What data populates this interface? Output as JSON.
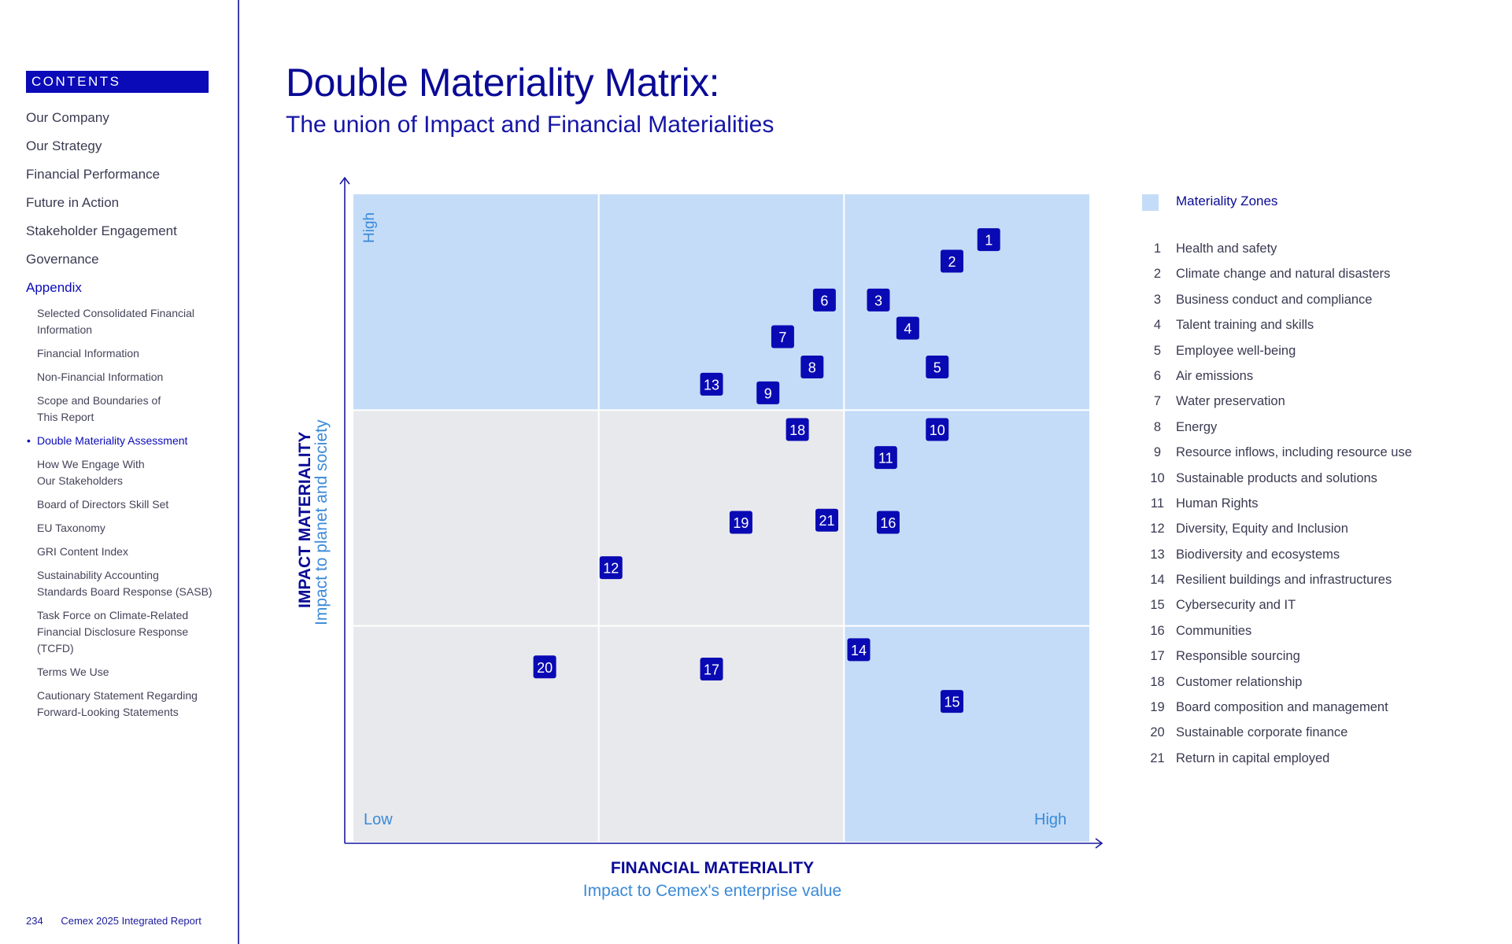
{
  "sidebar": {
    "contents_label": "CONTENTS",
    "main_items": [
      {
        "label": "Our Company"
      },
      {
        "label": "Our Strategy"
      },
      {
        "label": "Financial Performance"
      },
      {
        "label": "Future in Action"
      },
      {
        "label": "Stakeholder Engagement"
      },
      {
        "label": "Governance"
      },
      {
        "label": "Appendix"
      }
    ],
    "active_main": "Appendix",
    "sub_items": [
      {
        "label": "Selected Consolidated Financial\nInformation"
      },
      {
        "label": "Financial Information"
      },
      {
        "label": "Non-Financial Information"
      },
      {
        "label": "Scope and Boundaries of\nThis Report"
      },
      {
        "label": "Double Materiality Assessment"
      },
      {
        "label": "How We Engage With\nOur Stakeholders"
      },
      {
        "label": "Board of Directors Skill Set"
      },
      {
        "label": "EU Taxonomy"
      },
      {
        "label": "GRI Content Index"
      },
      {
        "label": "Sustainability Accounting\nStandards Board Response (SASB)"
      },
      {
        "label": "Task Force on Climate-Related\nFinancial Disclosure Response\n(TCFD)"
      },
      {
        "label": "Terms We Use"
      },
      {
        "label": "Cautionary Statement Regarding\nForward-Looking Statements"
      }
    ],
    "current_sub": "Double Materiality Assessment"
  },
  "footer": {
    "page_number": "234",
    "report_name": "Cemex 2025 Integrated Report"
  },
  "page": {
    "title": "Double Materiality Matrix:",
    "subtitle": "The union of Impact and Financial Materialities"
  },
  "colors": {
    "brand_blue": "#0a0ab4",
    "zone_high": "#c4dcf7",
    "zone_low": "#e8e9ec",
    "axis_accent": "#3b8ad8"
  },
  "chart_data": {
    "type": "scatter",
    "title": "Double Materiality Matrix:",
    "subtitle": "The union of Impact and Financial Materialities",
    "xlabel": "FINANCIAL MATERIALITY",
    "xlabel_sub": "Impact to Cemex's enterprise value",
    "ylabel": "IMPACT MATERIALITY",
    "ylabel_sub": "Impact to planet and society",
    "x_low_label": "Low",
    "x_high_label": "High",
    "y_high_label": "High",
    "xlim": [
      0,
      3
    ],
    "ylim": [
      0,
      3
    ],
    "grid": "3x3",
    "materiality_zones": [
      {
        "col": 0,
        "row": 2
      },
      {
        "col": 1,
        "row": 2
      },
      {
        "col": 2,
        "row": 2
      },
      {
        "col": 2,
        "row": 1
      },
      {
        "col": 2,
        "row": 0
      }
    ],
    "legend_title": "Materiality Zones",
    "points": [
      {
        "id": 1,
        "x": 2.59,
        "y": 2.79
      },
      {
        "id": 2,
        "x": 2.44,
        "y": 2.69
      },
      {
        "id": 3,
        "x": 2.14,
        "y": 2.51
      },
      {
        "id": 4,
        "x": 2.26,
        "y": 2.38
      },
      {
        "id": 5,
        "x": 2.38,
        "y": 2.2
      },
      {
        "id": 6,
        "x": 1.92,
        "y": 2.51
      },
      {
        "id": 7,
        "x": 1.75,
        "y": 2.34
      },
      {
        "id": 8,
        "x": 1.87,
        "y": 2.2
      },
      {
        "id": 9,
        "x": 1.69,
        "y": 2.08
      },
      {
        "id": 10,
        "x": 2.38,
        "y": 1.91
      },
      {
        "id": 11,
        "x": 2.17,
        "y": 1.78
      },
      {
        "id": 12,
        "x": 1.05,
        "y": 1.27
      },
      {
        "id": 13,
        "x": 1.46,
        "y": 2.12
      },
      {
        "id": 14,
        "x": 2.06,
        "y": 0.89
      },
      {
        "id": 15,
        "x": 2.44,
        "y": 0.65
      },
      {
        "id": 16,
        "x": 2.18,
        "y": 1.48
      },
      {
        "id": 17,
        "x": 1.46,
        "y": 0.8
      },
      {
        "id": 18,
        "x": 1.81,
        "y": 1.91
      },
      {
        "id": 19,
        "x": 1.58,
        "y": 1.48
      },
      {
        "id": 20,
        "x": 0.78,
        "y": 0.81
      },
      {
        "id": 21,
        "x": 1.93,
        "y": 1.49
      }
    ],
    "legend_items": [
      {
        "num": "1",
        "label": "Health and safety"
      },
      {
        "num": "2",
        "label": "Climate change and natural disasters"
      },
      {
        "num": "3",
        "label": "Business conduct and compliance"
      },
      {
        "num": "4",
        "label": "Talent training and skills"
      },
      {
        "num": "5",
        "label": "Employee well-being"
      },
      {
        "num": "6",
        "label": "Air emissions"
      },
      {
        "num": "7",
        "label": "Water preservation"
      },
      {
        "num": "8",
        "label": "Energy"
      },
      {
        "num": "9",
        "label": "Resource inflows, including resource use"
      },
      {
        "num": "10",
        "label": "Sustainable products and solutions"
      },
      {
        "num": "11",
        "label": "Human Rights"
      },
      {
        "num": "12",
        "label": "Diversity, Equity and Inclusion"
      },
      {
        "num": "13",
        "label": "Biodiversity and ecosystems"
      },
      {
        "num": "14",
        "label": "Resilient buildings and infrastructures"
      },
      {
        "num": "15",
        "label": "Cybersecurity and IT"
      },
      {
        "num": "16",
        "label": "Communities"
      },
      {
        "num": "17",
        "label": "Responsible sourcing"
      },
      {
        "num": "18",
        "label": "Customer relationship"
      },
      {
        "num": "19",
        "label": "Board composition and management"
      },
      {
        "num": "20",
        "label": "Sustainable corporate finance"
      },
      {
        "num": "21",
        "label": "Return in capital employed"
      }
    ]
  }
}
